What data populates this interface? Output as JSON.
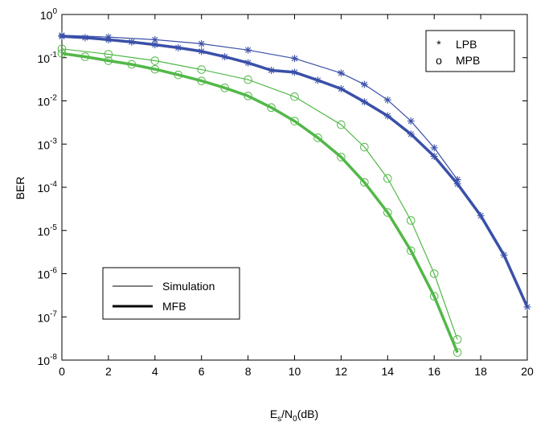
{
  "chart_data": {
    "type": "line",
    "xlabel": {
      "main": "E",
      "sub1": "s",
      "mid": "/N",
      "sub2": "0",
      "tail": "(dB)"
    },
    "ylabel": "BER",
    "xlim": [
      0,
      20
    ],
    "ylim": [
      1e-08,
      1
    ],
    "yscale": "log",
    "grid": false,
    "x_ticks": [
      "0",
      "2",
      "4",
      "6",
      "8",
      "10",
      "12",
      "14",
      "16",
      "18",
      "20"
    ],
    "y_ticks": [
      {
        "base": "10",
        "exp": "0",
        "value": 1
      },
      {
        "base": "10",
        "exp": "-1",
        "value": 0.1
      },
      {
        "base": "10",
        "exp": "-2",
        "value": 0.01
      },
      {
        "base": "10",
        "exp": "-3",
        "value": 0.001
      },
      {
        "base": "10",
        "exp": "-4",
        "value": 0.0001
      },
      {
        "base": "10",
        "exp": "-5",
        "value": 1e-05
      },
      {
        "base": "10",
        "exp": "-6",
        "value": 1e-06
      },
      {
        "base": "10",
        "exp": "-7",
        "value": 1e-07
      },
      {
        "base": "10",
        "exp": "-8",
        "value": 1e-08
      }
    ],
    "legend_markers": {
      "placement": "top-right",
      "entries": [
        {
          "symbol": "*",
          "label": "LPB"
        },
        {
          "symbol": "o",
          "label": "MPB"
        }
      ]
    },
    "legend_lines": {
      "placement": "bottom-left",
      "entries": [
        {
          "label": "Simulation",
          "weight": "thin"
        },
        {
          "label": "MFB",
          "weight": "thick"
        }
      ]
    },
    "colors": {
      "blue": "#3a50a8",
      "green": "#52b848"
    },
    "series": [
      {
        "group": "LPB",
        "style": "simulation",
        "marker": "star",
        "color": "blue",
        "x": [
          0,
          2,
          4,
          6,
          8,
          10,
          12,
          13,
          14,
          15,
          16,
          17
        ],
        "y": [
          0.33,
          0.3,
          0.26,
          0.21,
          0.15,
          0.096,
          0.044,
          0.024,
          0.0105,
          0.0034,
          0.00082,
          0.00015
        ]
      },
      {
        "group": "LPB",
        "style": "bound",
        "marker": "star",
        "color": "blue",
        "x": [
          0,
          1,
          2,
          3,
          4,
          5,
          6,
          7,
          8,
          9,
          10,
          11,
          12,
          13,
          14,
          15,
          16,
          17,
          18,
          19,
          20
        ],
        "y": [
          0.31,
          0.29,
          0.26,
          0.23,
          0.2,
          0.17,
          0.14,
          0.105,
          0.076,
          0.051,
          0.046,
          0.03,
          0.019,
          0.0095,
          0.0045,
          0.0017,
          0.00052,
          0.00012,
          2.2e-05,
          2.7e-06,
          1.7e-07
        ]
      },
      {
        "group": "MPB",
        "style": "simulation",
        "marker": "circle",
        "color": "green",
        "x": [
          0,
          2,
          4,
          6,
          8,
          10,
          12,
          13,
          14,
          15,
          16,
          17
        ],
        "y": [
          0.16,
          0.12,
          0.085,
          0.053,
          0.031,
          0.0125,
          0.0028,
          0.00085,
          0.00016,
          1.7e-05,
          1e-06,
          3e-08
        ]
      },
      {
        "group": "MPB",
        "style": "bound",
        "marker": "circle",
        "color": "green",
        "x": [
          0,
          1,
          2,
          3,
          4,
          5,
          6,
          7,
          8,
          9,
          10,
          11,
          12,
          13,
          14,
          15,
          16,
          17
        ],
        "y": [
          0.125,
          0.105,
          0.085,
          0.07,
          0.054,
          0.04,
          0.029,
          0.02,
          0.013,
          0.007,
          0.0034,
          0.0014,
          0.0005,
          0.00013,
          2.6e-05,
          3.4e-06,
          3e-07,
          1.5e-08
        ]
      }
    ]
  }
}
